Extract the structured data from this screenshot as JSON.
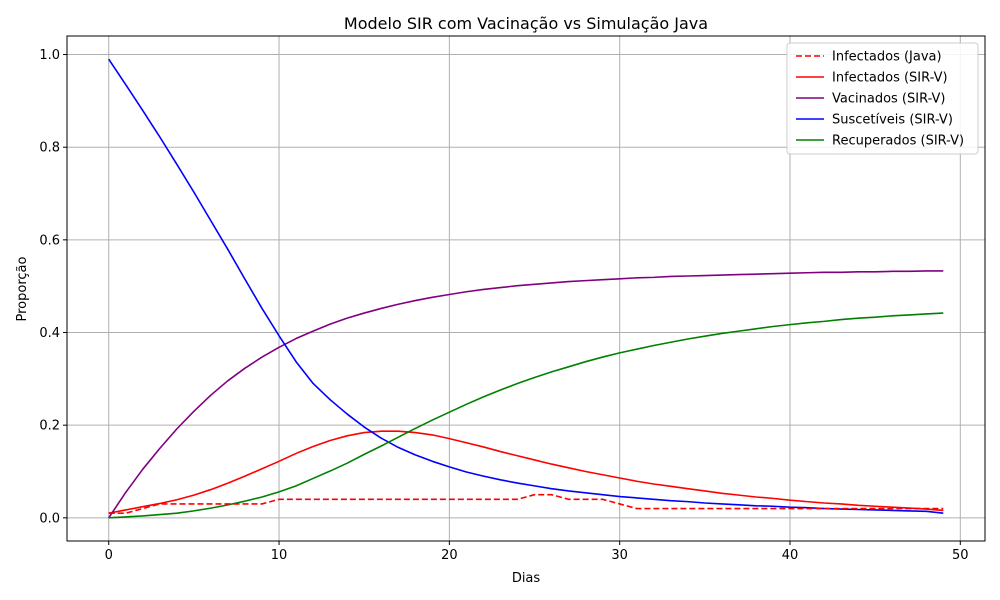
{
  "chart_data": {
    "type": "line",
    "title": "Modelo SIR com Vacinação vs Simulação Java",
    "xlabel": "Dias",
    "ylabel": "Proporção",
    "xlim": [
      -2.45,
      51.45
    ],
    "ylim": [
      -0.05,
      1.04
    ],
    "xticks": [
      0,
      10,
      20,
      30,
      40,
      50
    ],
    "yticks": [
      0.0,
      0.2,
      0.4,
      0.6,
      0.8,
      1.0
    ],
    "grid": true,
    "legend_position": "top-right",
    "x": [
      0,
      1,
      2,
      3,
      4,
      5,
      6,
      7,
      8,
      9,
      10,
      11,
      12,
      13,
      14,
      15,
      16,
      17,
      18,
      19,
      20,
      21,
      22,
      23,
      24,
      25,
      26,
      27,
      28,
      29,
      30,
      31,
      32,
      33,
      34,
      35,
      36,
      37,
      38,
      39,
      40,
      41,
      42,
      43,
      44,
      45,
      46,
      47,
      48,
      49
    ],
    "series": [
      {
        "name": "Infectados (Java)",
        "color": "#ff0000",
        "dash": "dashed",
        "values": [
          0.01,
          0.01,
          0.02,
          0.03,
          0.03,
          0.03,
          0.03,
          0.03,
          0.03,
          0.03,
          0.04,
          0.04,
          0.04,
          0.04,
          0.04,
          0.04,
          0.04,
          0.04,
          0.04,
          0.04,
          0.04,
          0.04,
          0.04,
          0.04,
          0.04,
          0.05,
          0.05,
          0.04,
          0.04,
          0.04,
          0.03,
          0.02,
          0.02,
          0.02,
          0.02,
          0.02,
          0.02,
          0.02,
          0.02,
          0.02,
          0.02,
          0.02,
          0.02,
          0.02,
          0.02,
          0.02,
          0.02,
          0.02,
          0.02,
          0.02
        ]
      },
      {
        "name": "Infectados (SIR-V)",
        "color": "#ff0000",
        "dash": "solid",
        "values": [
          0.01,
          0.017,
          0.024,
          0.031,
          0.039,
          0.049,
          0.061,
          0.075,
          0.09,
          0.106,
          0.122,
          0.139,
          0.154,
          0.167,
          0.177,
          0.184,
          0.187,
          0.187,
          0.184,
          0.179,
          0.171,
          0.162,
          0.153,
          0.143,
          0.134,
          0.125,
          0.116,
          0.108,
          0.1,
          0.093,
          0.086,
          0.079,
          0.073,
          0.068,
          0.063,
          0.058,
          0.053,
          0.049,
          0.045,
          0.042,
          0.038,
          0.035,
          0.032,
          0.03,
          0.027,
          0.025,
          0.023,
          0.021,
          0.019,
          0.016
        ]
      },
      {
        "name": "Vacinados (SIR-V)",
        "color": "#800080",
        "dash": "solid",
        "values": [
          0.0,
          0.055,
          0.105,
          0.15,
          0.192,
          0.23,
          0.265,
          0.296,
          0.323,
          0.347,
          0.368,
          0.387,
          0.403,
          0.418,
          0.431,
          0.442,
          0.452,
          0.461,
          0.469,
          0.476,
          0.482,
          0.488,
          0.493,
          0.497,
          0.501,
          0.504,
          0.507,
          0.51,
          0.512,
          0.514,
          0.516,
          0.518,
          0.519,
          0.521,
          0.522,
          0.523,
          0.524,
          0.525,
          0.526,
          0.527,
          0.528,
          0.529,
          0.53,
          0.53,
          0.531,
          0.531,
          0.532,
          0.532,
          0.533,
          0.533
        ]
      },
      {
        "name": "Suscetíveis (SIR-V)",
        "color": "#0000ff",
        "dash": "solid",
        "values": [
          0.99,
          0.935,
          0.879,
          0.822,
          0.763,
          0.703,
          0.641,
          0.579,
          0.515,
          0.452,
          0.393,
          0.337,
          0.29,
          0.255,
          0.224,
          0.196,
          0.172,
          0.152,
          0.136,
          0.122,
          0.11,
          0.099,
          0.09,
          0.082,
          0.075,
          0.069,
          0.063,
          0.058,
          0.054,
          0.05,
          0.046,
          0.043,
          0.04,
          0.037,
          0.035,
          0.032,
          0.03,
          0.028,
          0.026,
          0.025,
          0.023,
          0.022,
          0.02,
          0.019,
          0.018,
          0.017,
          0.016,
          0.015,
          0.014,
          0.01
        ]
      },
      {
        "name": "Recuperados (SIR-V)",
        "color": "#008000",
        "dash": "solid",
        "values": [
          0.0,
          0.002,
          0.004,
          0.007,
          0.01,
          0.015,
          0.021,
          0.028,
          0.036,
          0.045,
          0.056,
          0.069,
          0.085,
          0.101,
          0.118,
          0.137,
          0.155,
          0.174,
          0.193,
          0.211,
          0.228,
          0.245,
          0.261,
          0.276,
          0.29,
          0.303,
          0.315,
          0.326,
          0.337,
          0.347,
          0.356,
          0.364,
          0.372,
          0.379,
          0.386,
          0.392,
          0.398,
          0.403,
          0.408,
          0.413,
          0.417,
          0.421,
          0.424,
          0.428,
          0.431,
          0.433,
          0.436,
          0.438,
          0.44,
          0.442
        ]
      }
    ]
  }
}
